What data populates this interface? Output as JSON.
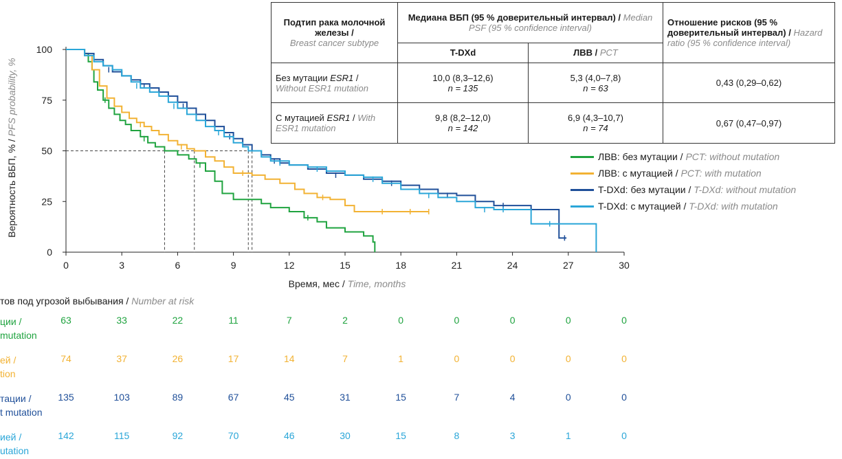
{
  "table": {
    "h_subtype_ru": "Подтип рака молочной железы /",
    "h_subtype_en": "Breast cancer subtype",
    "h_median_ru": "Медиана ВБП (95 % доверительный интервал) /",
    "h_median_en": "Median PSF (95 % confidence interval)",
    "h_hr_ru": "Отношение рисков (95 % доверительный интервал) /",
    "h_hr_en": "Hazard ratio (95 % confidence interval)",
    "h_tdxd": "T-DXd",
    "h_pct_ru": "ЛВВ /",
    "h_pct_en": "PCT",
    "rows": [
      {
        "label_ru_pre": "Без мутации ",
        "label_gene": "ESR1",
        "label_ru_post": " /",
        "label_en": "Without ESR1 mutation",
        "tdxd": "10,0 (8,3–12,6)",
        "tdxd_n": "n = 135",
        "pct": "5,3 (4,0–7,8)",
        "pct_n": "n = 63",
        "hr": "0,43 (0,29–0,62)"
      },
      {
        "label_ru_pre": "С мутацией ",
        "label_gene": "ESR1",
        "label_ru_post": " / ",
        "label_en": "With ESR1 mutation",
        "tdxd": "9,8 (8,2–12,0)",
        "tdxd_n": "n = 142",
        "pct": "6,9 (4,3–10,7)",
        "pct_n": "n = 74",
        "hr": "0,67 (0,47–0,97)"
      }
    ]
  },
  "legend": [
    {
      "ru": "ЛВВ: без мутации / ",
      "en": "PCT: without mutation",
      "color": "#1fa33f"
    },
    {
      "ru": "ЛВВ: с мутацией / ",
      "en": "PCT: with mutation",
      "color": "#f2b233"
    },
    {
      "ru": "T-DXd: без мутации / ",
      "en": "T-DXd: without mutation",
      "color": "#1f4f99"
    },
    {
      "ru": "T-DXd: с мутацией / ",
      "en": "T-DXd: with mutation",
      "color": "#2aa6d8"
    }
  ],
  "risk": {
    "title_ru": "тов под угрозой выбывания / ",
    "title_en": "Number at risk",
    "labels": [
      {
        "l1": "ции /",
        "l2": "mutation"
      },
      {
        "l1": "ей /",
        "l2": "tion"
      },
      {
        "l1": "тации /",
        "l2": "t mutation"
      },
      {
        "l1": "ией /",
        "l2": "utation"
      }
    ]
  },
  "chart_data": {
    "type": "line",
    "xlabel_ru": "Время, мес / ",
    "xlabel_en": "Time, months",
    "ylabel_ru": "Вероятность ВБП, % / ",
    "ylabel_en": "PFS probability, %",
    "xlim": [
      0,
      30
    ],
    "ylim": [
      0,
      100
    ],
    "xticks": [
      0,
      3,
      6,
      9,
      12,
      15,
      18,
      21,
      24,
      27,
      30
    ],
    "yticks": [
      0,
      25,
      50,
      75,
      100
    ],
    "median_lines": [
      5.3,
      6.9,
      9.8,
      10.0
    ],
    "series": [
      {
        "name": "ЛВВ: без мутации / PCT: without mutation",
        "color": "#1fa33f",
        "x": [
          0,
          0.5,
          1.0,
          1.2,
          1.4,
          1.5,
          1.7,
          2.0,
          2.3,
          2.6,
          2.9,
          3.2,
          3.5,
          4.0,
          4.4,
          4.8,
          5.3,
          6.0,
          6.6,
          7.0,
          7.5,
          8.0,
          8.4,
          9.0,
          9.6,
          10.0,
          10.5,
          11.0,
          12.0,
          12.8,
          13.5,
          14.0,
          15.0,
          16.0,
          16.5,
          16.6
        ],
        "y": [
          100,
          100,
          98,
          94,
          90,
          84,
          80,
          75,
          71,
          68,
          65,
          63,
          60,
          57,
          54,
          52,
          50,
          48,
          46,
          44,
          40,
          35,
          29,
          26,
          26,
          26,
          24,
          22,
          20,
          17,
          15,
          12,
          10,
          8,
          5,
          0
        ],
        "censored": [
          [
            2.1,
            75
          ],
          [
            4.2,
            56
          ],
          [
            7.2,
            43
          ],
          [
            13.0,
            17
          ]
        ]
      },
      {
        "name": "ЛВВ: с мутацией / PCT: with mutation",
        "color": "#f2b233",
        "x": [
          0,
          0.6,
          1.0,
          1.4,
          1.8,
          2.2,
          2.6,
          3.0,
          3.4,
          3.8,
          4.2,
          4.6,
          5.0,
          5.5,
          6.0,
          6.5,
          6.9,
          7.5,
          8.0,
          8.5,
          9.0,
          10.0,
          10.7,
          11.5,
          12.3,
          12.8,
          13.5,
          14.2,
          15.0,
          15.5,
          16.5,
          18.0,
          19.0,
          19.5
        ],
        "y": [
          100,
          100,
          97,
          90,
          82,
          76,
          72,
          69,
          66,
          64,
          62,
          60,
          58,
          55,
          53,
          51,
          50,
          47,
          45,
          42,
          39,
          38,
          36,
          34,
          31,
          29,
          27,
          26,
          23,
          20,
          20,
          20,
          20,
          20
        ],
        "censored": [
          [
            4.0,
            63
          ],
          [
            6.2,
            52
          ],
          [
            9.5,
            39
          ],
          [
            13.8,
            27
          ],
          [
            17.0,
            20
          ],
          [
            18.5,
            20
          ],
          [
            19.5,
            20
          ]
        ]
      },
      {
        "name": "T-DXd: без мутации / T-DXd: without mutation",
        "color": "#1f4f99",
        "x": [
          0,
          0.8,
          1.0,
          1.5,
          2.0,
          2.5,
          3.0,
          3.5,
          4.0,
          4.5,
          5.0,
          5.5,
          6.0,
          6.5,
          7.0,
          7.5,
          8.0,
          8.5,
          9.0,
          9.5,
          10.0,
          10.5,
          11.0,
          11.5,
          12.0,
          13.0,
          14.0,
          15.0,
          16.0,
          17.0,
          18.0,
          19.0,
          20.0,
          21.0,
          22.0,
          23.0,
          24.0,
          25.0,
          26.0,
          26.5,
          26.9
        ],
        "y": [
          100,
          100,
          98,
          95,
          92,
          89,
          87,
          85,
          83,
          81,
          79,
          77,
          74,
          71,
          68,
          65,
          62,
          59,
          56,
          53,
          50,
          48,
          46,
          44,
          43,
          41,
          39,
          38,
          36,
          35,
          33,
          31,
          29,
          28,
          25,
          23,
          23,
          21,
          21,
          7,
          7
        ],
        "censored": [
          [
            2.3,
            90
          ],
          [
            4.2,
            82
          ],
          [
            6.3,
            72
          ],
          [
            8.8,
            57
          ],
          [
            11.2,
            45
          ],
          [
            14.5,
            38
          ],
          [
            17.5,
            34
          ],
          [
            20.5,
            28
          ],
          [
            23.5,
            23
          ],
          [
            26.8,
            7
          ]
        ]
      },
      {
        "name": "T-DXd: с мутацией / T-DXd: with mutation",
        "color": "#2aa6d8",
        "x": [
          0,
          0.5,
          1.0,
          1.5,
          2.0,
          2.5,
          3.0,
          3.5,
          4.0,
          4.5,
          5.0,
          5.5,
          6.0,
          6.5,
          7.0,
          7.5,
          8.0,
          8.5,
          9.0,
          9.5,
          9.8,
          10.5,
          11.0,
          12.0,
          13.0,
          14.0,
          15.0,
          16.0,
          17.0,
          18.0,
          19.0,
          20.0,
          21.0,
          22.0,
          23.0,
          24.0,
          24.5,
          25.0,
          26.0,
          27.0,
          28.0,
          28.5
        ],
        "y": [
          100,
          100,
          97,
          94,
          92,
          90,
          87,
          84,
          81,
          79,
          77,
          74,
          71,
          68,
          65,
          62,
          60,
          57,
          54,
          52,
          50,
          47,
          45,
          43,
          42,
          40,
          38,
          37,
          34,
          31,
          29,
          27,
          25,
          22,
          21,
          21,
          21,
          14,
          14,
          14,
          14,
          0
        ],
        "censored": [
          [
            3.8,
            82
          ],
          [
            5.8,
            72
          ],
          [
            8.2,
            59
          ],
          [
            11.5,
            44
          ],
          [
            13.5,
            41
          ],
          [
            16.5,
            36
          ],
          [
            19.5,
            28
          ],
          [
            22.5,
            21
          ],
          [
            23.5,
            21
          ],
          [
            26.0,
            14
          ]
        ]
      }
    ],
    "number_at_risk": [
      {
        "color": "#1fa33f",
        "values": [
          63,
          33,
          22,
          11,
          7,
          2,
          0,
          0,
          0,
          0,
          0
        ]
      },
      {
        "color": "#f2b233",
        "values": [
          74,
          37,
          26,
          17,
          14,
          7,
          1,
          0,
          0,
          0,
          0
        ]
      },
      {
        "color": "#1f4f99",
        "values": [
          135,
          103,
          89,
          67,
          45,
          31,
          15,
          7,
          4,
          0,
          0
        ]
      },
      {
        "color": "#2aa6d8",
        "values": [
          142,
          115,
          92,
          70,
          46,
          30,
          15,
          8,
          3,
          1,
          0
        ]
      }
    ]
  }
}
